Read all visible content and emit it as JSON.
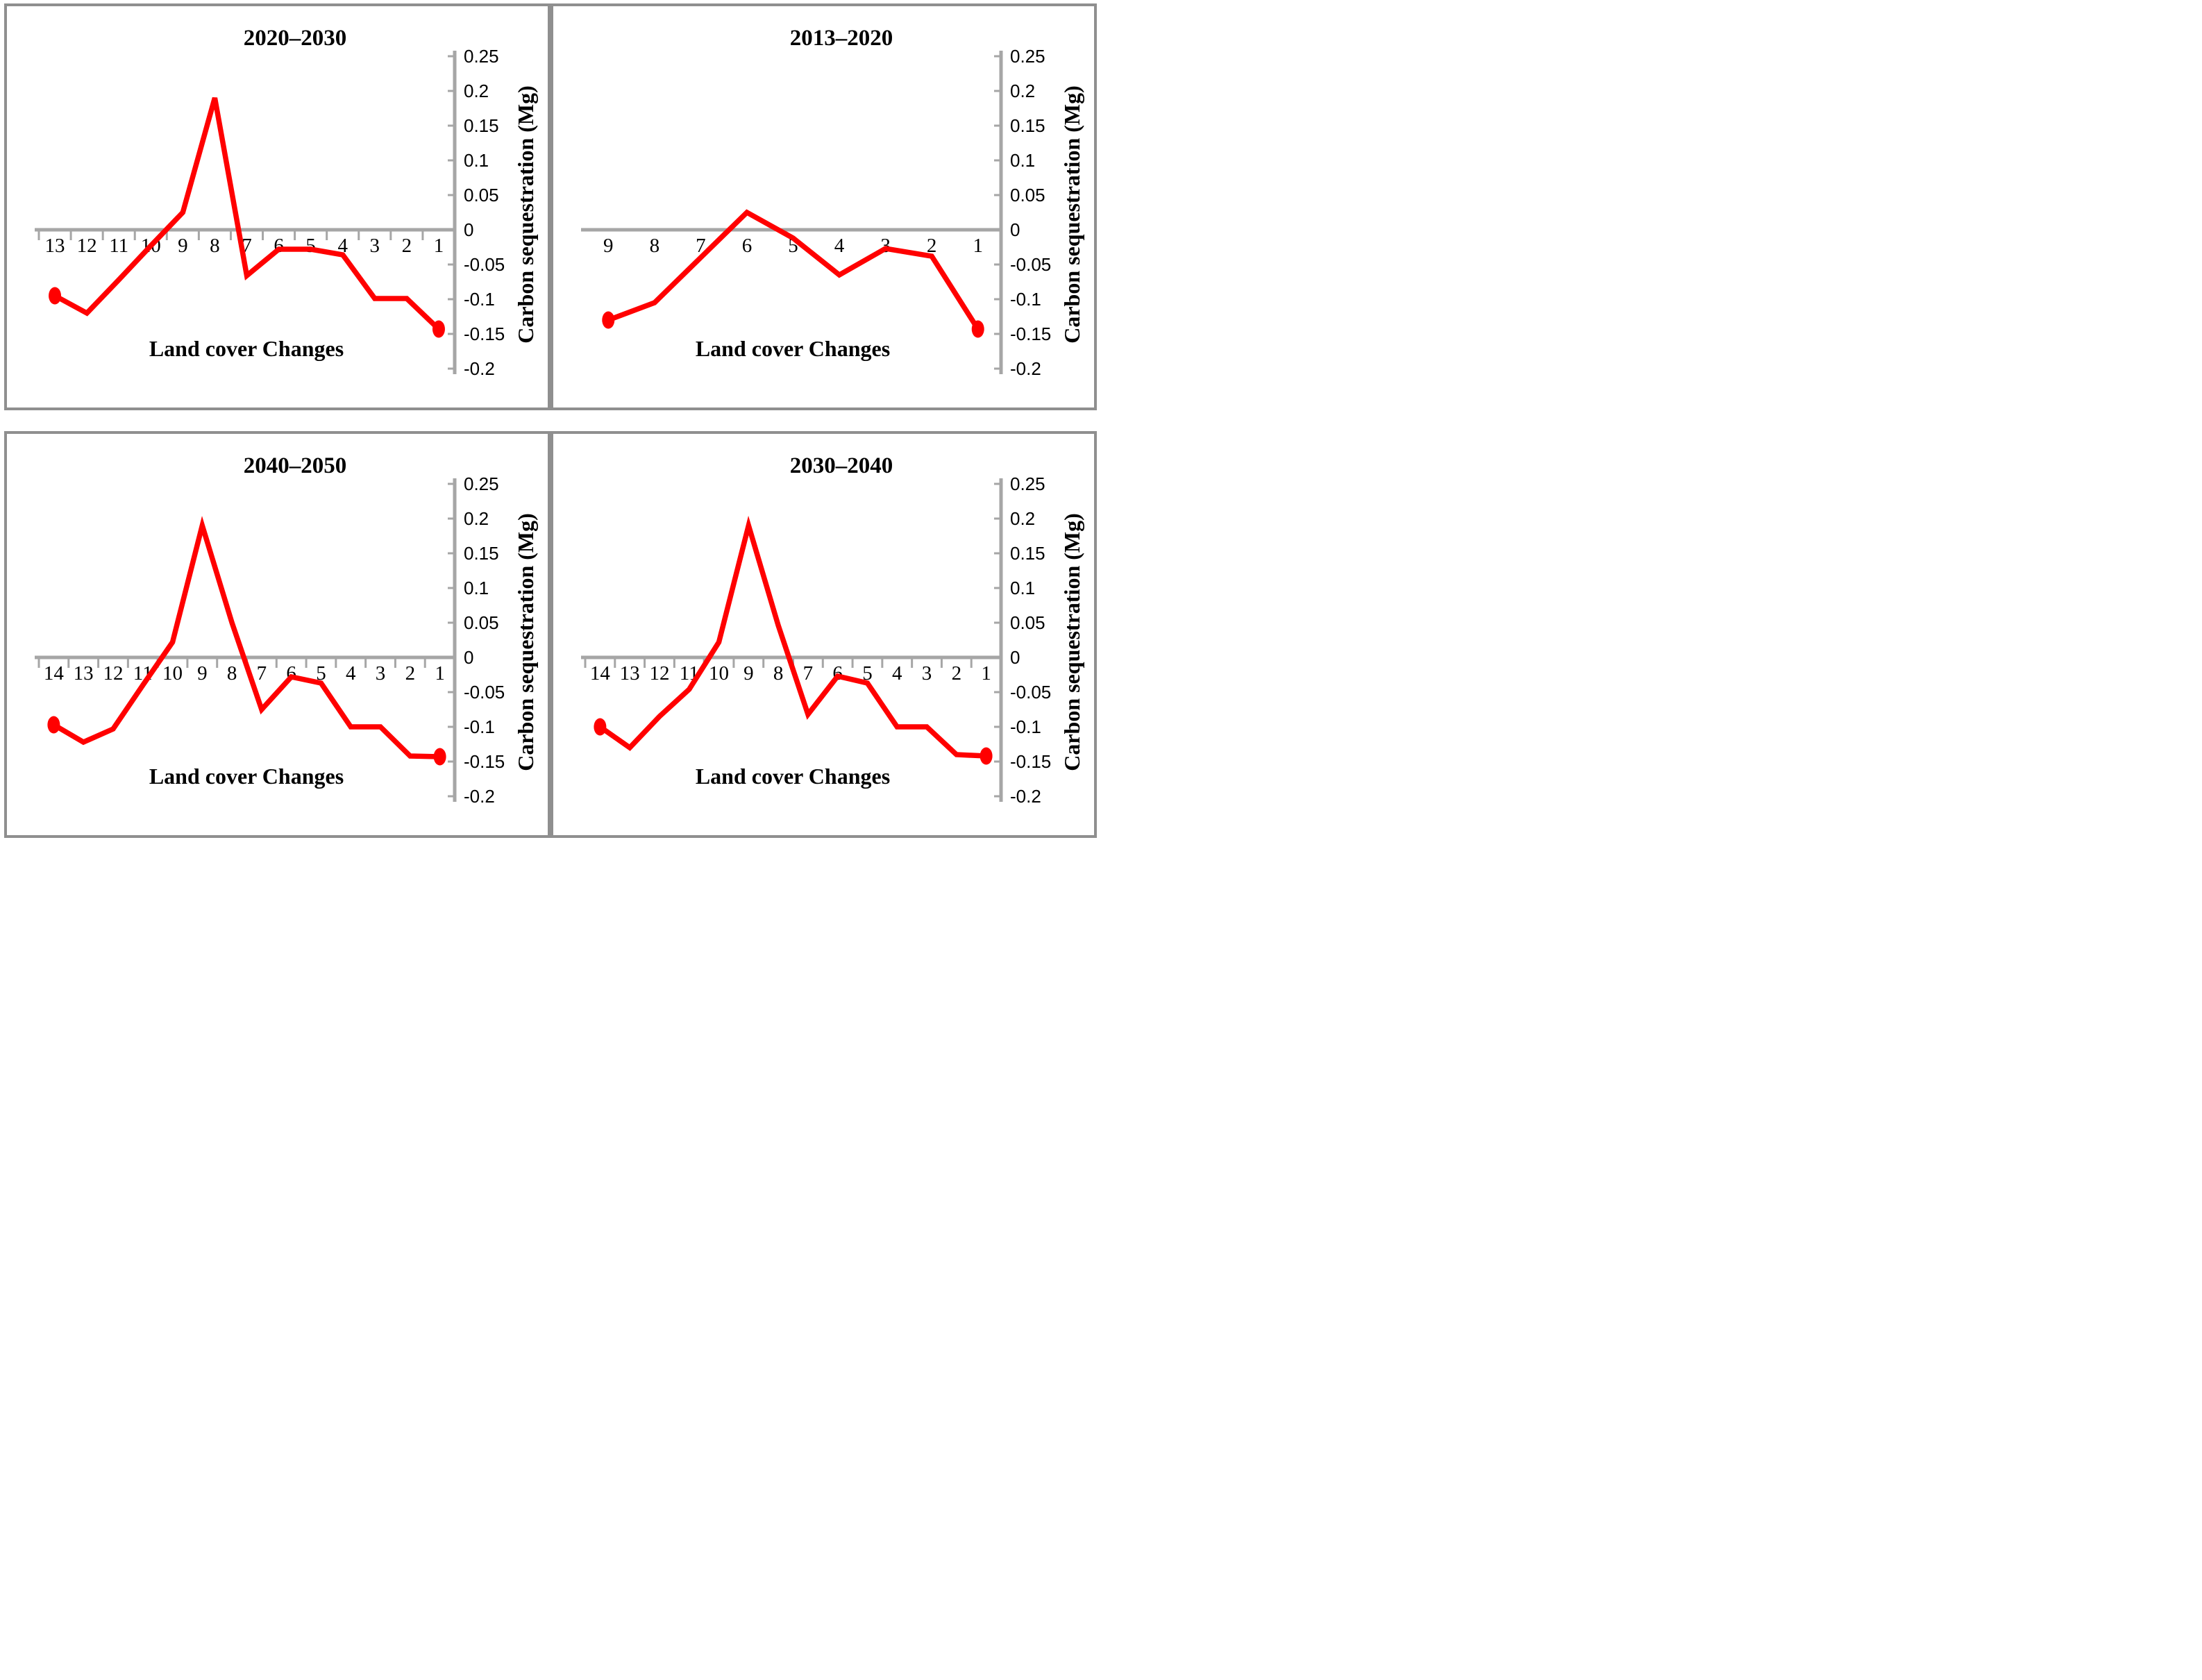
{
  "page": {
    "description": "Four line charts of carbon sequestration by land cover change class for four periods"
  },
  "colors": {
    "line": "#FF0000",
    "axis": "#A6A6A6",
    "panel_border": "#8F8F8F",
    "text": "#000000"
  },
  "chart_data": [
    {
      "type": "line",
      "title": "2020–2030",
      "xlabel": "Land cover Changes",
      "ylabel": "Carbon sequestration (Mg)",
      "categories": [
        "13",
        "12",
        "11",
        "10",
        "9",
        "8",
        "7",
        "6",
        "5",
        "4",
        "3",
        "2",
        "1"
      ],
      "values": [
        -0.095,
        -0.12,
        -0.072,
        -0.023,
        0.025,
        0.19,
        -0.066,
        -0.028,
        -0.028,
        -0.036,
        -0.099,
        -0.099,
        -0.143
      ],
      "ylim": [
        -0.2,
        0.25
      ],
      "y_ticks": [
        0.25,
        0.2,
        0.15,
        0.1,
        0.05,
        0,
        -0.05,
        -0.1,
        -0.15,
        -0.2
      ],
      "y_tick_labels": [
        "0.25",
        "0.2",
        "0.15",
        "0.1",
        "0.05",
        "0",
        "-0.05",
        "-0.1",
        "-0.15",
        "-0.2"
      ],
      "x_axis_ticks": true,
      "y_axis_position": "right",
      "grid": false,
      "legend": false,
      "markers": "first-and-last-point-only"
    },
    {
      "type": "line",
      "title": "2013–2020",
      "xlabel": "Land cover Changes",
      "ylabel": "Carbon sequestration (Mg)",
      "categories": [
        "9",
        "8",
        "7",
        "6",
        "5",
        "4",
        "3",
        "2",
        "1"
      ],
      "values": [
        -0.13,
        -0.105,
        -0.04,
        0.025,
        -0.012,
        -0.065,
        -0.027,
        -0.038,
        -0.143
      ],
      "ylim": [
        -0.2,
        0.25
      ],
      "y_ticks": [
        0.25,
        0.2,
        0.15,
        0.1,
        0.05,
        0,
        -0.05,
        -0.1,
        -0.15,
        -0.2
      ],
      "y_tick_labels": [
        "0.25",
        "0.2",
        "0.15",
        "0.1",
        "0.05",
        "0",
        "-0.05",
        "-0.1",
        "-0.15",
        "-0.2"
      ],
      "x_axis_ticks": false,
      "y_axis_position": "right",
      "grid": false,
      "legend": false,
      "markers": "first-and-last-point-only"
    },
    {
      "type": "line",
      "title": "2040–2050",
      "xlabel": "Land cover Changes",
      "ylabel": "Carbon sequestration (Mg)",
      "categories": [
        "14",
        "13",
        "12",
        "11",
        "10",
        "9",
        "8",
        "7",
        "6",
        "5",
        "4",
        "3",
        "2",
        "1"
      ],
      "values": [
        -0.097,
        -0.122,
        -0.103,
        -0.04,
        0.022,
        0.19,
        0.05,
        -0.075,
        -0.028,
        -0.037,
        -0.1,
        -0.1,
        -0.142,
        -0.143
      ],
      "ylim": [
        -0.2,
        0.25
      ],
      "y_ticks": [
        0.25,
        0.2,
        0.15,
        0.1,
        0.05,
        0,
        -0.05,
        -0.1,
        -0.15,
        -0.2
      ],
      "y_tick_labels": [
        "0.25",
        "0.2",
        "0.15",
        "0.1",
        "0.05",
        "0",
        "-0.05",
        "-0.1",
        "-0.15",
        "-0.2"
      ],
      "x_axis_ticks": true,
      "y_axis_position": "right",
      "grid": false,
      "legend": false,
      "markers": "first-and-last-point-only"
    },
    {
      "type": "line",
      "title": "2030–2040",
      "xlabel": "Land cover Changes",
      "ylabel": "Carbon sequestration (Mg)",
      "categories": [
        "14",
        "13",
        "12",
        "11",
        "10",
        "9",
        "8",
        "7",
        "6",
        "5",
        "4",
        "3",
        "2",
        "1"
      ],
      "values": [
        -0.1,
        -0.13,
        -0.085,
        -0.046,
        0.022,
        0.19,
        0.046,
        -0.082,
        -0.027,
        -0.037,
        -0.1,
        -0.1,
        -0.14,
        -0.142
      ],
      "ylim": [
        -0.2,
        0.25
      ],
      "y_ticks": [
        0.25,
        0.2,
        0.15,
        0.1,
        0.05,
        0,
        -0.05,
        -0.1,
        -0.15,
        -0.2
      ],
      "y_tick_labels": [
        "0.25",
        "0.2",
        "0.15",
        "0.1",
        "0.05",
        "0",
        "-0.05",
        "-0.1",
        "-0.15",
        "-0.2"
      ],
      "x_axis_ticks": true,
      "y_axis_position": "right",
      "grid": false,
      "legend": false,
      "markers": "first-and-last-point-only"
    }
  ]
}
